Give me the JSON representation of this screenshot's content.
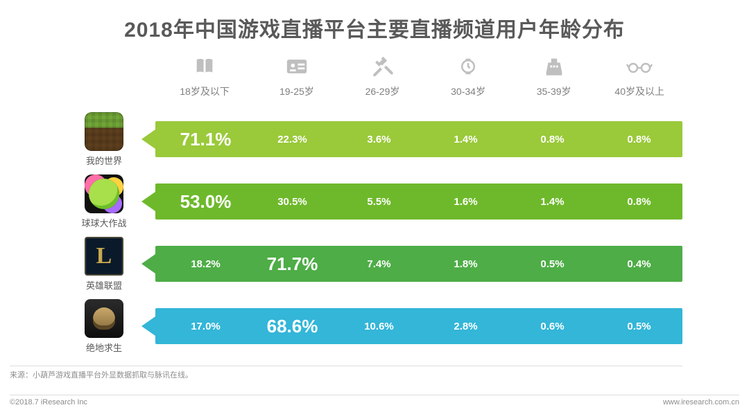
{
  "chart": {
    "title": "2018年中国游戏直播平台主要直播频道用户年龄分布",
    "type": "table-infographic",
    "age_groups": [
      {
        "label": "18岁及以下",
        "icon": "books-icon"
      },
      {
        "label": "19-25岁",
        "icon": "id-card-icon"
      },
      {
        "label": "26-29岁",
        "icon": "hammer-icon"
      },
      {
        "label": "30-34岁",
        "icon": "watch-icon"
      },
      {
        "label": "35-39岁",
        "icon": "cash-register-icon"
      },
      {
        "label": "40岁及以上",
        "icon": "glasses-icon"
      }
    ],
    "games": [
      {
        "name": "我的世界",
        "icon_key": "minecraft",
        "bar_color": "#9ac93a",
        "values_pct": [
          71.1,
          22.3,
          3.6,
          1.4,
          0.8,
          0.8
        ],
        "highlight_index": 0
      },
      {
        "name": "球球大作战",
        "icon_key": "bbdzz",
        "bar_color": "#6eb92b",
        "values_pct": [
          53.0,
          30.5,
          5.5,
          1.6,
          1.4,
          0.8
        ],
        "highlight_index": 0
      },
      {
        "name": "英雄联盟",
        "icon_key": "lol",
        "bar_color": "#4ead47",
        "values_pct": [
          18.2,
          71.7,
          7.4,
          1.8,
          0.5,
          0.4
        ],
        "highlight_index": 1
      },
      {
        "name": "绝地求生",
        "icon_key": "pubg",
        "bar_color": "#33b6d8",
        "values_pct": [
          17.0,
          68.6,
          10.6,
          2.8,
          0.6,
          0.5
        ],
        "highlight_index": 1
      }
    ],
    "highlight_fontsize_pt": 26,
    "normal_fontsize_pt": 15,
    "title_fontsize_pt": 30,
    "value_text_color": "#ffffff",
    "icon_color": "#bfbfbf",
    "header_label_color": "#7f7f7f",
    "background_color": "#ffffff",
    "divider_color": "#dcdcdc"
  },
  "source": {
    "label": "来源：小葫芦游戏直播平台外显数据抓取与脉讯在线。"
  },
  "footer": {
    "left": "©2018.7 iResearch Inc",
    "right": "www.iresearch.com.cn"
  }
}
